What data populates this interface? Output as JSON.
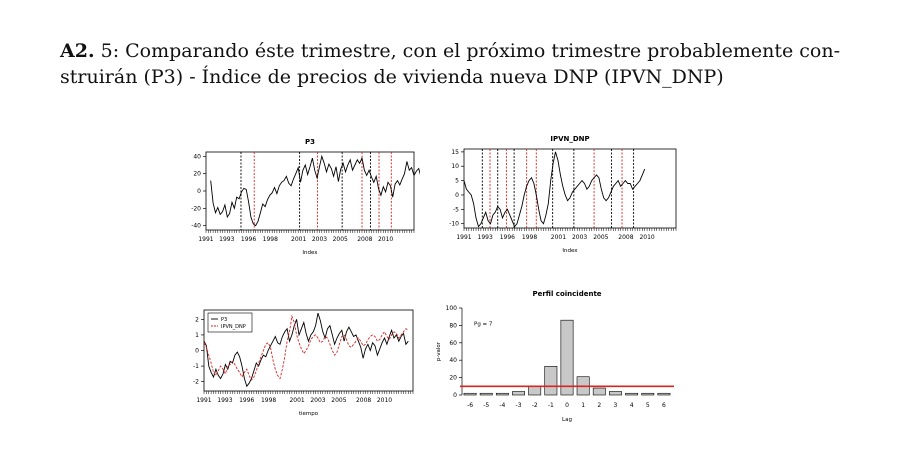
{
  "heading": {
    "number": "A2.",
    "text": " 5: Comparando éste trimestre, con el próximo trimestre probablemente con-",
    "text2": "struirán (P3) - Índice de precios de vivienda nueva  DNP (IPVN_DNP)"
  },
  "colors": {
    "red": "#dd2222",
    "black": "#000000",
    "bar_fill": "#c8c8c8"
  },
  "chart_data": [
    {
      "type": "line",
      "title": "P3",
      "xlabel": "Index",
      "ylabel": "",
      "xlim": [
        1991,
        2013
      ],
      "ylim": [
        -45,
        45
      ],
      "yticks": [
        -40,
        -20,
        0,
        20,
        40
      ],
      "xticks": [
        "1991",
        "1993",
        "1996",
        "1998",
        "2001",
        "2003",
        "2005",
        "2008",
        "2010"
      ],
      "xtick_pos": [
        1991,
        1993.2,
        1995.5,
        1997.8,
        2000.8,
        2003,
        2005.2,
        2007.8,
        2010
      ],
      "vlines": [
        {
          "x": 1994.7,
          "color": "black"
        },
        {
          "x": 1996.1,
          "color": "red"
        },
        {
          "x": 2000.9,
          "color": "black"
        },
        {
          "x": 2002.8,
          "color": "red"
        },
        {
          "x": 2005.4,
          "color": "black"
        },
        {
          "x": 2007.5,
          "color": "red"
        },
        {
          "x": 2008.4,
          "color": "black"
        },
        {
          "x": 2009.3,
          "color": "red"
        },
        {
          "x": 2010.6,
          "color": "red"
        }
      ],
      "series": [
        {
          "x0": 1991.5,
          "step": 0.25,
          "values": [
            12,
            -14,
            -25,
            -19,
            -27,
            -24,
            -16,
            -30,
            -26,
            -13,
            -20,
            -7,
            -9,
            -1,
            3,
            2,
            -12,
            -30,
            -38,
            -40,
            -35,
            -25,
            -15,
            -18,
            -10,
            -5,
            -2,
            4,
            -3,
            6,
            10,
            12,
            17,
            9,
            6,
            14,
            20,
            27,
            10,
            24,
            30,
            19,
            28,
            38,
            24,
            15,
            28,
            40,
            32,
            22,
            31,
            26,
            17,
            28,
            11,
            25,
            32,
            22,
            30,
            36,
            24,
            30,
            36,
            32,
            38,
            24,
            18,
            24,
            16,
            10,
            17,
            3,
            -5,
            5,
            -1,
            10,
            6,
            -7,
            8,
            12,
            7,
            14,
            20,
            34,
            24,
            27,
            18,
            23,
            26,
            16,
            18,
            15
          ]
        }
      ]
    },
    {
      "type": "line",
      "title": "IPVN_DNP",
      "xlabel": "Index",
      "ylabel": "",
      "xlim": [
        1991,
        2013
      ],
      "ylim": [
        -11.5,
        16
      ],
      "yticks": [
        -10,
        -5,
        0,
        5,
        10,
        15
      ],
      "xticks": [
        "1991",
        "1993",
        "1996",
        "1998",
        "2001",
        "2003",
        "2005",
        "2008",
        "2010"
      ],
      "xtick_pos": [
        1991,
        1993.2,
        1995.5,
        1997.8,
        2000.8,
        2003,
        2005.2,
        2007.8,
        2010
      ],
      "vlines": [
        {
          "x": 1992.9,
          "color": "black"
        },
        {
          "x": 1993.7,
          "color": "red"
        },
        {
          "x": 1994.5,
          "color": "black"
        },
        {
          "x": 1995.4,
          "color": "red"
        },
        {
          "x": 1996.2,
          "color": "black"
        },
        {
          "x": 1997.5,
          "color": "red"
        },
        {
          "x": 1998.5,
          "color": "red"
        },
        {
          "x": 2000.2,
          "color": "black"
        },
        {
          "x": 2002.4,
          "color": "black"
        },
        {
          "x": 2004.5,
          "color": "red"
        },
        {
          "x": 2006.3,
          "color": "black"
        },
        {
          "x": 2007.4,
          "color": "red"
        },
        {
          "x": 2008.6,
          "color": "black"
        }
      ],
      "series": [
        {
          "x0": 1991,
          "step": 0.25,
          "values": [
            5,
            2,
            1,
            0,
            -3,
            -8,
            -11,
            -10,
            -8,
            -6,
            -9,
            -10,
            -7,
            -6,
            -4,
            -5,
            -8,
            -6,
            -5,
            -7,
            -9,
            -11,
            -10,
            -7,
            -4,
            0,
            3,
            5,
            6,
            4,
            0,
            -5,
            -9,
            -10,
            -7,
            -3,
            5,
            11,
            15,
            12,
            7,
            3,
            0,
            -2,
            -1,
            1,
            2,
            3,
            4,
            5,
            4,
            2,
            3,
            5,
            6,
            7,
            6,
            2,
            -1,
            -2,
            -1,
            1,
            3,
            4,
            5,
            3,
            4,
            5,
            4,
            4,
            2,
            3,
            4,
            5,
            7,
            9
          ]
        }
      ]
    },
    {
      "type": "line",
      "title": "",
      "xlabel": "tiempo",
      "ylabel": "",
      "xlim": [
        1991,
        2013
      ],
      "ylim": [
        -2.6,
        2.6
      ],
      "yticks": [
        -2,
        -1,
        0,
        1,
        2
      ],
      "xticks": [
        "1991",
        "1993",
        "1996",
        "1998",
        "2001",
        "2003",
        "2005",
        "2008",
        "2010"
      ],
      "xtick_pos": [
        1991,
        1993.2,
        1995.5,
        1997.8,
        2000.8,
        2003,
        2005.2,
        2007.8,
        2010
      ],
      "legend": [
        "P3",
        "IPVN_DNP"
      ],
      "series": [
        {
          "name": "P3",
          "color": "black",
          "dash": false,
          "x0": 1991,
          "step": 0.25,
          "values": [
            0.6,
            0.3,
            -1.0,
            -1.4,
            -1.7,
            -1.2,
            -1.6,
            -1.8,
            -1.5,
            -0.9,
            -1.2,
            -0.7,
            -0.8,
            -0.3,
            -0.1,
            -0.4,
            -1.0,
            -1.8,
            -2.3,
            -2.1,
            -1.8,
            -1.3,
            -0.8,
            -1.0,
            -0.6,
            -0.3,
            -0.4,
            0.0,
            0.3,
            0.6,
            0.9,
            0.5,
            0.4,
            0.9,
            1.2,
            1.4,
            0.6,
            1.0,
            1.6,
            2.0,
            1.0,
            1.4,
            1.8,
            1.1,
            0.6,
            1.0,
            1.2,
            1.6,
            2.4,
            1.9,
            1.2,
            0.8,
            1.4,
            1.6,
            1.0,
            0.4,
            0.8,
            1.1,
            1.3,
            0.6,
            1.2,
            1.5,
            1.2,
            0.9,
            1.0,
            0.6,
            0.2,
            -0.5,
            0.1,
            0.4,
            0.0,
            0.5,
            0.3,
            -0.3,
            0.1,
            0.5,
            0.8,
            0.4,
            0.9,
            1.3,
            0.8,
            1.0,
            0.6,
            0.9,
            1.1,
            0.4,
            0.6
          ]
        },
        {
          "name": "IPVN_DNP",
          "color": "red",
          "dash": true,
          "x0": 1991,
          "step": 0.25,
          "values": [
            0.5,
            0.2,
            -0.3,
            -0.8,
            -1.4,
            -1.6,
            -1.3,
            -1.0,
            -1.2,
            -1.5,
            -1.0,
            -0.9,
            -0.7,
            -0.9,
            -1.2,
            -1.4,
            -1.7,
            -1.4,
            -1.2,
            -1.6,
            -1.9,
            -1.7,
            -1.3,
            -0.8,
            -0.4,
            0.0,
            0.4,
            0.5,
            0.2,
            -0.6,
            -1.2,
            -1.6,
            -1.8,
            -1.2,
            -0.4,
            0.6,
            1.2,
            2.2,
            1.8,
            1.0,
            0.5,
            0.1,
            -0.2,
            0.0,
            0.3,
            0.7,
            0.9,
            1.0,
            0.8,
            0.5,
            0.6,
            0.9,
            0.8,
            0.4,
            0.0,
            -0.3,
            -0.1,
            0.4,
            0.9,
            1.0,
            0.7,
            0.3,
            0.2,
            0.4,
            0.6,
            0.8,
            0.6,
            0.3,
            0.4,
            0.7,
            0.9,
            1.0,
            0.9,
            0.6,
            0.7,
            1.0,
            1.2,
            0.9,
            0.7,
            1.0,
            1.2,
            1.1,
            0.8,
            1.0,
            1.2,
            1.4,
            1.3
          ]
        }
      ]
    },
    {
      "type": "bar",
      "title": "Perfil coincidente",
      "xlabel": "Lag",
      "ylabel": "p-valor",
      "ylim": [
        0,
        100
      ],
      "yticks": [
        0,
        20,
        40,
        60,
        80,
        100
      ],
      "annotation": "Pg = 7",
      "hline": 10,
      "categories": [
        "-6",
        "-5",
        "-4",
        "-3",
        "-2",
        "-1",
        "0",
        "1",
        "2",
        "3",
        "4",
        "5",
        "6"
      ],
      "values": [
        2,
        2,
        2,
        4,
        10,
        33,
        86,
        21,
        8,
        4,
        2,
        2,
        2
      ]
    }
  ]
}
